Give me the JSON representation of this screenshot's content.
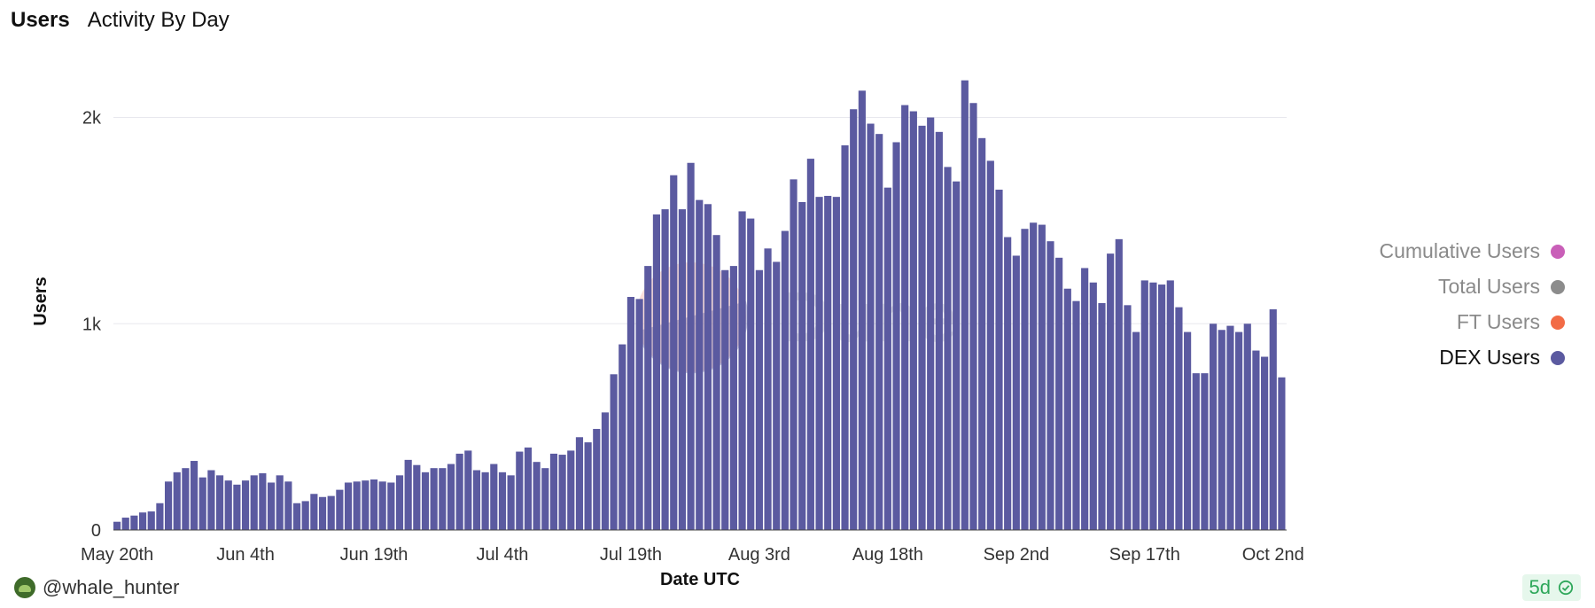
{
  "header": {
    "title": "Users",
    "subtitle": "Activity By Day"
  },
  "footer": {
    "author": "@whale_hunter",
    "age_badge": "5d"
  },
  "watermark": "Dune",
  "legend": [
    {
      "label": "Cumulative Users",
      "color": "#c95fb8",
      "active": false
    },
    {
      "label": "Total Users",
      "color": "#8c8c8c",
      "active": false
    },
    {
      "label": "FT Users",
      "color": "#f26b46",
      "active": false
    },
    {
      "label": "DEX Users",
      "color": "#5b5aa0",
      "active": true
    }
  ],
  "chart_data": {
    "type": "bar",
    "xlabel": "Date UTC",
    "ylabel": "Users",
    "ylim": [
      0,
      2200
    ],
    "yticks": [
      0,
      1000,
      2000
    ],
    "ytick_labels": [
      "0",
      "1k",
      "2k"
    ],
    "grid": true,
    "legend_position": "right",
    "start_date": "May 20th",
    "x_tick_labels": [
      {
        "index": 0,
        "label": "May 20th"
      },
      {
        "index": 15,
        "label": "Jun 4th"
      },
      {
        "index": 30,
        "label": "Jun 19th"
      },
      {
        "index": 45,
        "label": "Jul 4th"
      },
      {
        "index": 60,
        "label": "Jul 19th"
      },
      {
        "index": 75,
        "label": "Aug 3rd"
      },
      {
        "index": 90,
        "label": "Aug 18th"
      },
      {
        "index": 105,
        "label": "Sep 2nd"
      },
      {
        "index": 120,
        "label": "Sep 17th"
      },
      {
        "index": 135,
        "label": "Oct 2nd"
      }
    ],
    "series": [
      {
        "name": "DEX Users",
        "color": "#5b5aa0",
        "values": [
          40,
          60,
          70,
          85,
          90,
          130,
          235,
          280,
          300,
          335,
          255,
          290,
          265,
          240,
          220,
          240,
          265,
          275,
          230,
          265,
          235,
          130,
          140,
          175,
          160,
          165,
          195,
          230,
          235,
          240,
          245,
          235,
          230,
          265,
          340,
          315,
          280,
          300,
          300,
          320,
          370,
          385,
          290,
          280,
          320,
          280,
          265,
          380,
          400,
          330,
          300,
          370,
          365,
          385,
          450,
          425,
          490,
          570,
          755,
          900,
          1130,
          1120,
          1280,
          1530,
          1555,
          1720,
          1555,
          1780,
          1600,
          1580,
          1430,
          1260,
          1280,
          1545,
          1510,
          1260,
          1365,
          1300,
          1450,
          1700,
          1590,
          1800,
          1615,
          1620,
          1615,
          1865,
          2040,
          2130,
          1970,
          1920,
          1660,
          1880,
          2060,
          2030,
          1960,
          2000,
          1930,
          1760,
          1690,
          2180,
          2070,
          1900,
          1790,
          1650,
          1420,
          1330,
          1460,
          1490,
          1480,
          1400,
          1320,
          1170,
          1110,
          1270,
          1200,
          1100,
          1340,
          1410,
          1090,
          960,
          1210,
          1200,
          1190,
          1210,
          1080,
          960,
          760,
          760,
          1000,
          970,
          990,
          960,
          1000,
          870,
          840,
          1070,
          740
        ]
      }
    ]
  }
}
